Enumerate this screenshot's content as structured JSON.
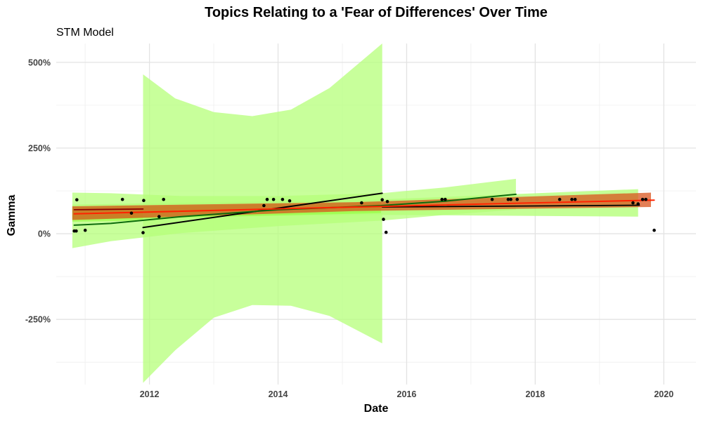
{
  "chart_data": {
    "type": "scatter",
    "title": "Topics Relating to a 'Fear of Differences' Over Time",
    "subtitle": "STM Model",
    "xlabel": "Date",
    "ylabel": "Gamma",
    "x_unit": "year",
    "xlim": [
      2010.55,
      2020.5
    ],
    "ylim": [
      -4.4,
      5.55
    ],
    "x_ticks": [
      2012,
      2014,
      2016,
      2018,
      2020
    ],
    "x_tick_labels": [
      "2012",
      "2014",
      "2016",
      "2018",
      "2020"
    ],
    "y_ticks": [
      -2.5,
      0,
      2.5,
      5
    ],
    "y_tick_labels": [
      "-250%",
      "0%",
      "250%",
      "500%"
    ],
    "y_format": "percent",
    "grid": true,
    "legend": "none",
    "colors": {
      "band_green": "#b5ff7a",
      "band_bright": "#8cff2e",
      "band_red": "#d9541e",
      "line_black": "#000000",
      "line_green": "#0d6b0d",
      "line_red": "#ff2200",
      "line_darkred": "#8b0000",
      "point": "#000000"
    },
    "points": [
      {
        "x": 2010.83,
        "y": 0.08
      },
      {
        "x": 2010.86,
        "y": 0.08
      },
      {
        "x": 2010.87,
        "y": 0.99
      },
      {
        "x": 2011.0,
        "y": 0.1
      },
      {
        "x": 2011.58,
        "y": 1.0
      },
      {
        "x": 2011.72,
        "y": 0.6
      },
      {
        "x": 2011.9,
        "y": 0.03
      },
      {
        "x": 2011.91,
        "y": 0.97
      },
      {
        "x": 2012.15,
        "y": 0.5
      },
      {
        "x": 2012.22,
        "y": 1.0
      },
      {
        "x": 2013.78,
        "y": 0.82
      },
      {
        "x": 2013.83,
        "y": 1.0
      },
      {
        "x": 2013.93,
        "y": 1.0
      },
      {
        "x": 2014.07,
        "y": 1.0
      },
      {
        "x": 2014.18,
        "y": 0.96
      },
      {
        "x": 2015.3,
        "y": 0.9
      },
      {
        "x": 2015.62,
        "y": 0.99
      },
      {
        "x": 2015.64,
        "y": 0.42
      },
      {
        "x": 2015.68,
        "y": 0.04
      },
      {
        "x": 2015.7,
        "y": 0.94
      },
      {
        "x": 2016.55,
        "y": 1.0
      },
      {
        "x": 2016.6,
        "y": 1.0
      },
      {
        "x": 2017.33,
        "y": 1.0
      },
      {
        "x": 2017.58,
        "y": 1.0
      },
      {
        "x": 2017.62,
        "y": 1.0
      },
      {
        "x": 2017.72,
        "y": 1.0
      },
      {
        "x": 2018.38,
        "y": 1.0
      },
      {
        "x": 2018.57,
        "y": 1.0
      },
      {
        "x": 2018.62,
        "y": 1.0
      },
      {
        "x": 2019.52,
        "y": 0.9
      },
      {
        "x": 2019.6,
        "y": 0.87
      },
      {
        "x": 2019.67,
        "y": 1.0
      },
      {
        "x": 2019.72,
        "y": 1.0
      },
      {
        "x": 2019.85,
        "y": 0.1
      }
    ],
    "bands": [
      {
        "color": "band_green",
        "opacity": 0.75,
        "upper": [
          [
            2011.9,
            4.65
          ],
          [
            2012.4,
            3.95
          ],
          [
            2013.0,
            3.55
          ],
          [
            2013.6,
            3.43
          ],
          [
            2014.2,
            3.62
          ],
          [
            2014.8,
            4.25
          ],
          [
            2015.62,
            5.55
          ]
        ],
        "lower": [
          [
            2015.62,
            -3.2
          ],
          [
            2014.8,
            -2.4
          ],
          [
            2014.2,
            -2.1
          ],
          [
            2013.6,
            -2.08
          ],
          [
            2013.0,
            -2.45
          ],
          [
            2012.4,
            -3.4
          ],
          [
            2011.9,
            -4.35
          ]
        ]
      },
      {
        "color": "band_green",
        "opacity": 0.75,
        "upper": [
          [
            2010.8,
            1.2
          ],
          [
            2011.4,
            1.18
          ],
          [
            2012.5,
            1.1
          ],
          [
            2014.0,
            1.1
          ],
          [
            2015.6,
            1.18
          ],
          [
            2016.6,
            1.35
          ],
          [
            2017.7,
            1.6
          ]
        ],
        "lower": [
          [
            2017.7,
            0.7
          ],
          [
            2016.6,
            0.55
          ],
          [
            2015.6,
            0.38
          ],
          [
            2014.0,
            0.22
          ],
          [
            2012.5,
            0.02
          ],
          [
            2011.4,
            -0.22
          ],
          [
            2010.8,
            -0.42
          ]
        ]
      },
      {
        "color": "band_green",
        "opacity": 0.8,
        "upper": [
          [
            2010.8,
            0.85
          ],
          [
            2015.6,
            1.0
          ],
          [
            2019.6,
            1.3
          ]
        ],
        "lower": [
          [
            2019.6,
            0.5
          ],
          [
            2015.6,
            0.55
          ],
          [
            2010.8,
            0.45
          ]
        ]
      },
      {
        "color": "band_bright",
        "opacity": 0.5,
        "upper": [
          [
            2010.8,
            0.78
          ],
          [
            2015.6,
            0.9
          ]
        ],
        "lower": [
          [
            2015.6,
            0.6
          ],
          [
            2010.8,
            0.4
          ]
        ]
      },
      {
        "color": "band_bright",
        "opacity": 0.5,
        "upper": [
          [
            2010.8,
            0.72
          ],
          [
            2011.9,
            0.75
          ]
        ],
        "lower": [
          [
            2011.9,
            0.38
          ],
          [
            2010.8,
            0.35
          ]
        ]
      },
      {
        "color": "band_red",
        "opacity": 0.75,
        "upper": [
          [
            2010.8,
            0.8
          ],
          [
            2015.2,
            0.92
          ],
          [
            2019.8,
            1.2
          ]
        ],
        "lower": [
          [
            2019.8,
            0.78
          ],
          [
            2015.2,
            0.66
          ],
          [
            2010.8,
            0.4
          ]
        ]
      }
    ],
    "lines": [
      {
        "color": "line_black",
        "width": 2,
        "points": [
          [
            2011.9,
            0.18
          ],
          [
            2015.62,
            1.18
          ]
        ]
      },
      {
        "color": "line_green",
        "width": 2,
        "points": [
          [
            2010.83,
            0.25
          ],
          [
            2011.4,
            0.3
          ],
          [
            2012.5,
            0.5
          ],
          [
            2014.0,
            0.7
          ],
          [
            2015.6,
            0.82
          ],
          [
            2016.6,
            0.95
          ],
          [
            2017.7,
            1.15
          ]
        ]
      },
      {
        "color": "line_darkred",
        "width": 1.8,
        "points": [
          [
            2010.83,
            0.7
          ],
          [
            2011.9,
            0.72
          ]
        ]
      },
      {
        "color": "line_black",
        "width": 1.8,
        "points": [
          [
            2015.62,
            0.78
          ],
          [
            2019.62,
            0.83
          ]
        ]
      },
      {
        "color": "line_red",
        "width": 2,
        "points": [
          [
            2010.83,
            0.58
          ],
          [
            2015.2,
            0.78
          ],
          [
            2019.85,
            0.98
          ]
        ]
      }
    ]
  }
}
